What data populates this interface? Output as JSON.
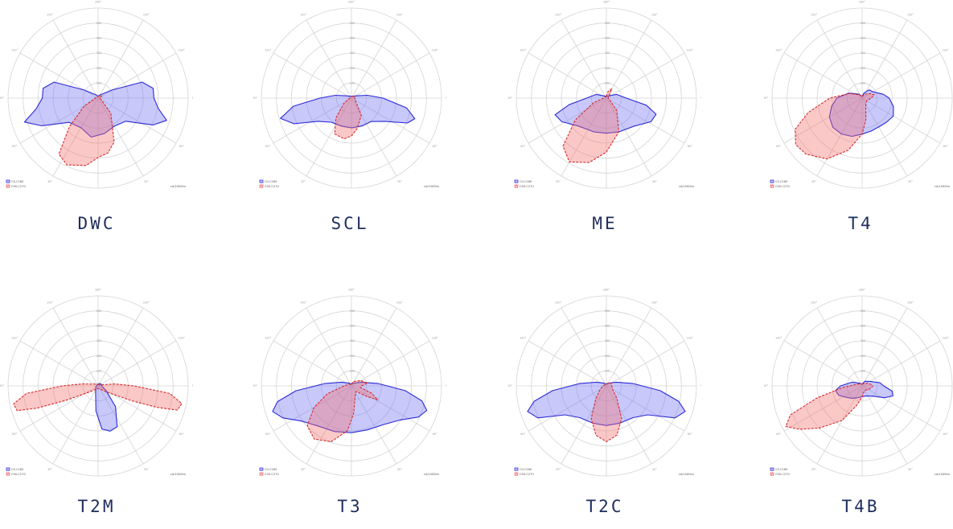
{
  "legend": {
    "c0": "C0-C180",
    "c90": "C90-C270"
  },
  "unit": "cd/1000lm",
  "angle_labels": [
    "180°",
    "150°",
    "150°",
    "120°",
    "120°",
    "90°",
    "90°",
    "60°",
    "60°",
    "30°",
    "30°",
    "0°"
  ],
  "radial_labels": [
    "100",
    "200",
    "300",
    "400",
    "500"
  ],
  "colors": {
    "c0_stroke": "#2b2bd6",
    "c0_fill": "#6e6ef5",
    "c90_stroke": "#d62b2b",
    "c90_fill": "#f56e6e",
    "label": "#1f2d5c"
  },
  "diagrams": [
    {
      "label": "DWC",
      "c0": [
        [
          -90,
          0.62
        ],
        [
          -100,
          0.62
        ],
        [
          -110,
          0.52
        ],
        [
          -120,
          0.18
        ],
        [
          -150,
          0.04
        ],
        [
          180,
          0.02
        ],
        [
          150,
          0.04
        ],
        [
          120,
          0.18
        ],
        [
          110,
          0.52
        ],
        [
          100,
          0.62
        ],
        [
          90,
          0.62
        ],
        [
          80,
          0.68
        ],
        [
          72,
          0.8
        ],
        [
          64,
          0.68
        ],
        [
          50,
          0.4
        ],
        [
          30,
          0.36
        ],
        [
          10,
          0.4
        ],
        [
          -10,
          0.44
        ],
        [
          -30,
          0.38
        ],
        [
          -50,
          0.42
        ],
        [
          -64,
          0.7
        ],
        [
          -72,
          0.86
        ],
        [
          -80,
          0.7
        ]
      ],
      "c90": [
        [
          180,
          0.02
        ],
        [
          150,
          0.03
        ],
        [
          120,
          0.05
        ],
        [
          90,
          0.02
        ],
        [
          60,
          0.04
        ],
        [
          40,
          0.22
        ],
        [
          20,
          0.52
        ],
        [
          10,
          0.62
        ],
        [
          0,
          0.66
        ],
        [
          -10,
          0.76
        ],
        [
          -25,
          0.82
        ],
        [
          -35,
          0.76
        ],
        [
          -45,
          0.45
        ],
        [
          -60,
          0.18
        ],
        [
          -90,
          0.03
        ]
      ]
    },
    {
      "label": "SCL",
      "c0": [
        [
          -90,
          0.35
        ],
        [
          -100,
          0.18
        ],
        [
          -115,
          0.06
        ],
        [
          180,
          0.02
        ],
        [
          115,
          0.06
        ],
        [
          100,
          0.18
        ],
        [
          90,
          0.35
        ],
        [
          80,
          0.62
        ],
        [
          72,
          0.74
        ],
        [
          66,
          0.68
        ],
        [
          55,
          0.45
        ],
        [
          40,
          0.34
        ],
        [
          20,
          0.33
        ],
        [
          0,
          0.33
        ],
        [
          -20,
          0.33
        ],
        [
          -40,
          0.35
        ],
        [
          -55,
          0.45
        ],
        [
          -66,
          0.7
        ],
        [
          -74,
          0.82
        ],
        [
          -82,
          0.65
        ]
      ],
      "c90": [
        [
          180,
          0.02
        ],
        [
          120,
          0.04
        ],
        [
          60,
          0.05
        ],
        [
          30,
          0.22
        ],
        [
          10,
          0.35
        ],
        [
          0,
          0.42
        ],
        [
          -10,
          0.46
        ],
        [
          -25,
          0.44
        ],
        [
          -38,
          0.28
        ],
        [
          -55,
          0.1
        ],
        [
          -90,
          0.02
        ]
      ]
    },
    {
      "label": "ME",
      "c0": [
        [
          -90,
          0.22
        ],
        [
          -110,
          0.12
        ],
        [
          -140,
          0.03
        ],
        [
          180,
          0.02
        ],
        [
          140,
          0.03
        ],
        [
          110,
          0.12
        ],
        [
          90,
          0.22
        ],
        [
          80,
          0.45
        ],
        [
          72,
          0.58
        ],
        [
          62,
          0.56
        ],
        [
          45,
          0.44
        ],
        [
          20,
          0.4
        ],
        [
          0,
          0.39
        ],
        [
          -20,
          0.4
        ],
        [
          -45,
          0.44
        ],
        [
          -62,
          0.56
        ],
        [
          -72,
          0.6
        ],
        [
          -80,
          0.42
        ]
      ],
      "c90": [
        [
          180,
          0.02
        ],
        [
          165,
          0.08
        ],
        [
          150,
          0.12
        ],
        [
          140,
          0.06
        ],
        [
          120,
          0.03
        ],
        [
          90,
          0.02
        ],
        [
          60,
          0.04
        ],
        [
          40,
          0.18
        ],
        [
          20,
          0.4
        ],
        [
          0,
          0.6
        ],
        [
          -15,
          0.74
        ],
        [
          -30,
          0.82
        ],
        [
          -42,
          0.72
        ],
        [
          -55,
          0.42
        ],
        [
          -70,
          0.15
        ],
        [
          -90,
          0.03
        ]
      ]
    },
    {
      "label": "T4",
      "c0": [
        [
          180,
          0.02
        ],
        [
          160,
          0.06
        ],
        [
          140,
          0.12
        ],
        [
          120,
          0.14
        ],
        [
          100,
          0.24
        ],
        [
          90,
          0.3
        ],
        [
          75,
          0.36
        ],
        [
          60,
          0.4
        ],
        [
          45,
          0.38
        ],
        [
          30,
          0.37
        ],
        [
          15,
          0.38
        ],
        [
          0,
          0.4
        ],
        [
          -15,
          0.44
        ],
        [
          -30,
          0.46
        ],
        [
          -45,
          0.46
        ],
        [
          -60,
          0.42
        ],
        [
          -75,
          0.35
        ],
        [
          -90,
          0.28
        ],
        [
          -110,
          0.16
        ],
        [
          -140,
          0.06
        ]
      ],
      "c90": [
        [
          180,
          0.02
        ],
        [
          150,
          0.05
        ],
        [
          120,
          0.1
        ],
        [
          105,
          0.14
        ],
        [
          90,
          0.1
        ],
        [
          60,
          0.06
        ],
        [
          30,
          0.08
        ],
        [
          10,
          0.24
        ],
        [
          0,
          0.4
        ],
        [
          -15,
          0.6
        ],
        [
          -30,
          0.78
        ],
        [
          -45,
          0.88
        ],
        [
          -55,
          0.9
        ],
        [
          -65,
          0.82
        ],
        [
          -75,
          0.62
        ],
        [
          -90,
          0.36
        ],
        [
          -110,
          0.15
        ],
        [
          -140,
          0.05
        ]
      ]
    },
    {
      "label": "T2M",
      "c0": [
        [
          180,
          0.02
        ],
        [
          150,
          0.03
        ],
        [
          120,
          0.04
        ],
        [
          90,
          0.04
        ],
        [
          60,
          0.1
        ],
        [
          40,
          0.3
        ],
        [
          25,
          0.5
        ],
        [
          15,
          0.52
        ],
        [
          5,
          0.48
        ],
        [
          -5,
          0.28
        ],
        [
          -20,
          0.08
        ],
        [
          -60,
          0.03
        ],
        [
          -90,
          0.02
        ]
      ],
      "c90": [
        [
          180,
          0.02
        ],
        [
          120,
          0.02
        ],
        [
          97,
          0.18
        ],
        [
          90,
          0.4
        ],
        [
          84,
          0.8
        ],
        [
          78,
          0.95
        ],
        [
          73,
          0.92
        ],
        [
          70,
          0.7
        ],
        [
          66,
          0.4
        ],
        [
          55,
          0.12
        ],
        [
          30,
          0.04
        ],
        [
          0,
          0.03
        ],
        [
          -30,
          0.04
        ],
        [
          -55,
          0.12
        ],
        [
          -66,
          0.4
        ],
        [
          -70,
          0.72
        ],
        [
          -73,
          0.94
        ],
        [
          -78,
          0.96
        ],
        [
          -84,
          0.8
        ],
        [
          -90,
          0.4
        ],
        [
          -97,
          0.18
        ]
      ]
    },
    {
      "label": "T3",
      "c0": [
        [
          180,
          0.02
        ],
        [
          140,
          0.04
        ],
        [
          110,
          0.12
        ],
        [
          95,
          0.3
        ],
        [
          85,
          0.6
        ],
        [
          78,
          0.8
        ],
        [
          72,
          0.88
        ],
        [
          65,
          0.82
        ],
        [
          55,
          0.66
        ],
        [
          40,
          0.56
        ],
        [
          20,
          0.52
        ],
        [
          0,
          0.52
        ],
        [
          -20,
          0.54
        ],
        [
          -40,
          0.58
        ],
        [
          -55,
          0.68
        ],
        [
          -65,
          0.84
        ],
        [
          -72,
          0.92
        ],
        [
          -78,
          0.84
        ],
        [
          -85,
          0.62
        ],
        [
          -95,
          0.3
        ],
        [
          -110,
          0.12
        ],
        [
          -140,
          0.04
        ]
      ],
      "c90": [
        [
          180,
          0.02
        ],
        [
          160,
          0.05
        ],
        [
          120,
          0.12
        ],
        [
          100,
          0.18
        ],
        [
          92,
          0.12
        ],
        [
          80,
          0.1
        ],
        [
          70,
          0.24
        ],
        [
          62,
          0.33
        ],
        [
          55,
          0.2
        ],
        [
          40,
          0.08
        ],
        [
          20,
          0.12
        ],
        [
          5,
          0.3
        ],
        [
          -5,
          0.5
        ],
        [
          -20,
          0.66
        ],
        [
          -35,
          0.72
        ],
        [
          -48,
          0.66
        ],
        [
          -60,
          0.48
        ],
        [
          -72,
          0.28
        ],
        [
          -90,
          0.08
        ],
        [
          -130,
          0.03
        ]
      ]
    },
    {
      "label": "T2C",
      "c0": [
        [
          180,
          0.02
        ],
        [
          140,
          0.04
        ],
        [
          110,
          0.12
        ],
        [
          95,
          0.3
        ],
        [
          85,
          0.6
        ],
        [
          78,
          0.82
        ],
        [
          72,
          0.92
        ],
        [
          65,
          0.84
        ],
        [
          55,
          0.56
        ],
        [
          40,
          0.46
        ],
        [
          20,
          0.44
        ],
        [
          0,
          0.44
        ],
        [
          -20,
          0.44
        ],
        [
          -40,
          0.46
        ],
        [
          -55,
          0.56
        ],
        [
          -65,
          0.84
        ],
        [
          -72,
          0.92
        ],
        [
          -78,
          0.82
        ],
        [
          -85,
          0.6
        ],
        [
          -95,
          0.3
        ],
        [
          -110,
          0.12
        ],
        [
          -140,
          0.04
        ]
      ],
      "c90": [
        [
          180,
          0.02
        ],
        [
          150,
          0.04
        ],
        [
          120,
          0.06
        ],
        [
          90,
          0.06
        ],
        [
          60,
          0.08
        ],
        [
          40,
          0.18
        ],
        [
          25,
          0.4
        ],
        [
          12,
          0.56
        ],
        [
          0,
          0.62
        ],
        [
          -12,
          0.56
        ],
        [
          -25,
          0.4
        ],
        [
          -40,
          0.18
        ],
        [
          -60,
          0.08
        ],
        [
          -90,
          0.04
        ]
      ]
    },
    {
      "label": "T4B",
      "c0": [
        [
          180,
          0.02
        ],
        [
          150,
          0.06
        ],
        [
          120,
          0.1
        ],
        [
          100,
          0.2
        ],
        [
          90,
          0.24
        ],
        [
          80,
          0.34
        ],
        [
          72,
          0.36
        ],
        [
          62,
          0.28
        ],
        [
          45,
          0.16
        ],
        [
          20,
          0.12
        ],
        [
          0,
          0.12
        ],
        [
          -20,
          0.14
        ],
        [
          -40,
          0.18
        ],
        [
          -55,
          0.22
        ],
        [
          -68,
          0.28
        ],
        [
          -80,
          0.3
        ],
        [
          -90,
          0.24
        ],
        [
          -110,
          0.12
        ],
        [
          -140,
          0.04
        ]
      ],
      "c90": [
        [
          180,
          0.02
        ],
        [
          150,
          0.03
        ],
        [
          120,
          0.06
        ],
        [
          100,
          0.1
        ],
        [
          90,
          0.12
        ],
        [
          75,
          0.1
        ],
        [
          60,
          0.08
        ],
        [
          35,
          0.06
        ],
        [
          10,
          0.08
        ],
        [
          0,
          0.12
        ],
        [
          -15,
          0.22
        ],
        [
          -30,
          0.44
        ],
        [
          -45,
          0.66
        ],
        [
          -55,
          0.84
        ],
        [
          -62,
          0.96
        ],
        [
          -68,
          0.86
        ],
        [
          -75,
          0.52
        ],
        [
          -85,
          0.22
        ],
        [
          -100,
          0.08
        ],
        [
          -140,
          0.03
        ]
      ]
    }
  ]
}
